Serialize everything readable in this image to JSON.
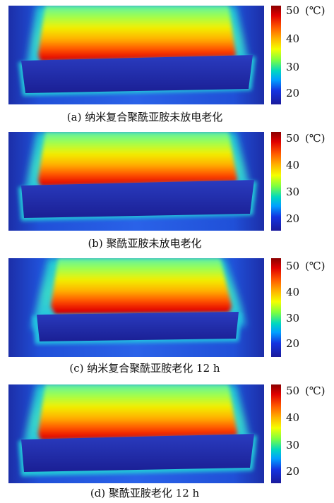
{
  "colorbar": {
    "unit": "(℃)",
    "ticks": [
      "50",
      "40",
      "30",
      "20"
    ],
    "colors": [
      "#8b0000",
      "#e00000",
      "#ff5a00",
      "#ffb000",
      "#f4ff00",
      "#7cff40",
      "#00d8c0",
      "#00a0ff",
      "#1434e0",
      "#1a1a9c"
    ]
  },
  "panels": [
    {
      "id": "a",
      "caption": "(a) 纳米复合聚酰亚胺未放电老化"
    },
    {
      "id": "b",
      "caption": "(b) 聚酰亚胺未放电老化"
    },
    {
      "id": "c",
      "caption": "(c) 纳米复合聚酰亚胺老化 12 h"
    },
    {
      "id": "d",
      "caption": "(d) 聚酰亚胺老化 12 h"
    }
  ]
}
